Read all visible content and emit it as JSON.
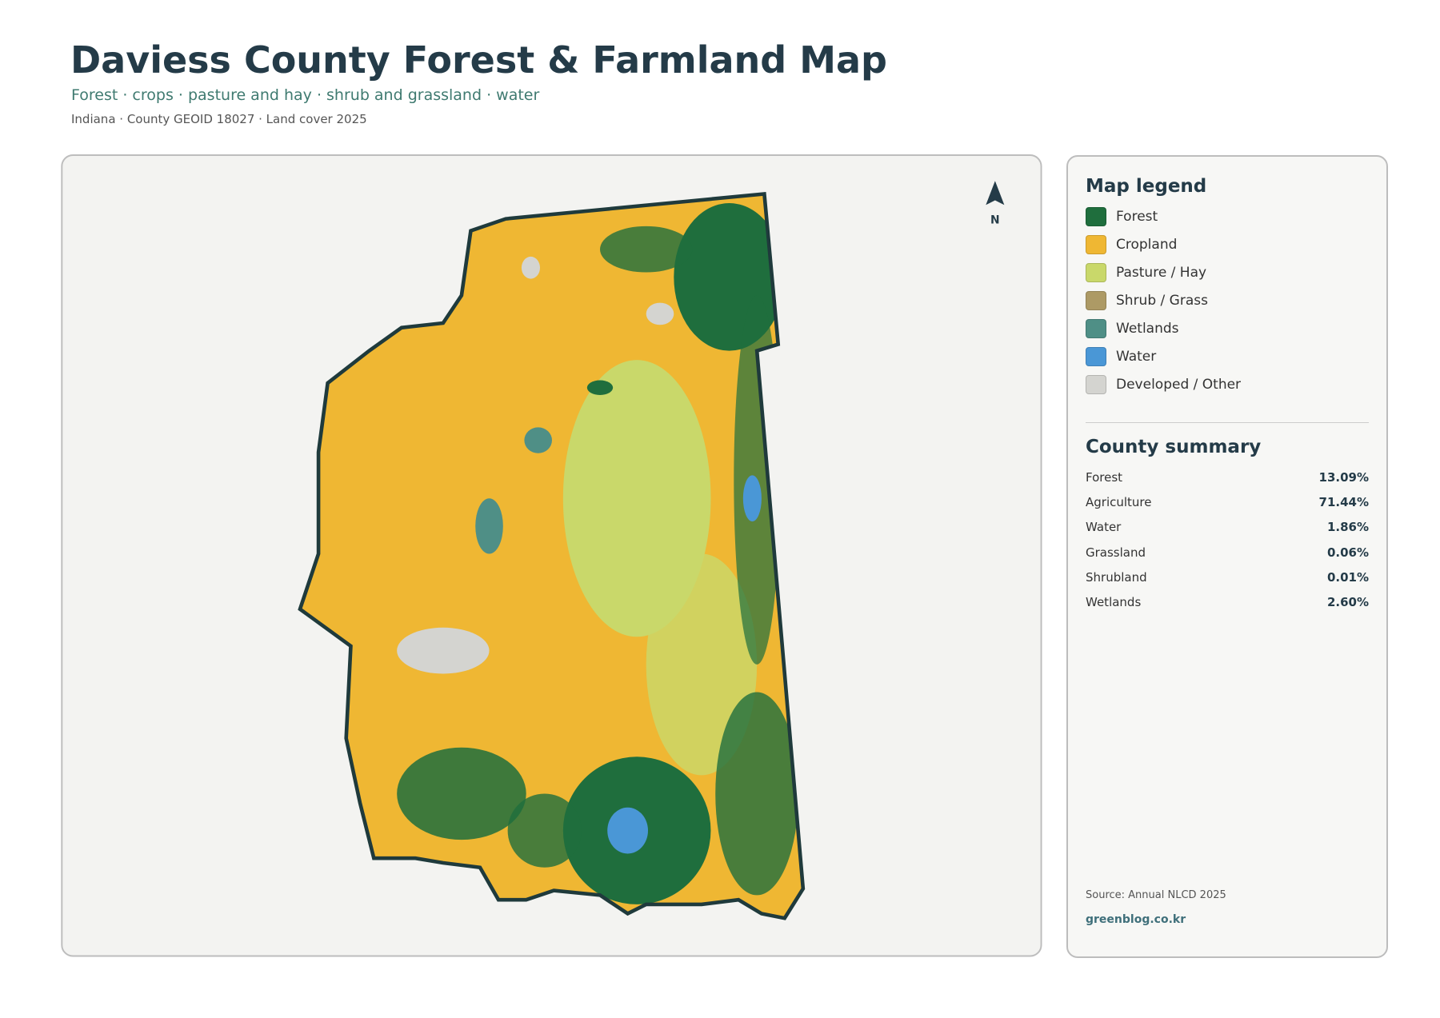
{
  "header": {
    "title": "Daviess County Forest & Farmland Map",
    "subtitle": "Forest · crops · pasture and hay · shrub and grassland · water",
    "meta": "Indiana · County GEOID 18027 · Land cover 2025"
  },
  "map": {
    "north_label": "N"
  },
  "legend": {
    "title": "Map legend",
    "items": [
      {
        "label": "Forest",
        "color": "#1f6e3d"
      },
      {
        "label": "Cropland",
        "color": "#efb733"
      },
      {
        "label": "Pasture / Hay",
        "color": "#c9d86a"
      },
      {
        "label": "Shrub / Grass",
        "color": "#ad9a65"
      },
      {
        "label": "Wetlands",
        "color": "#4f8f86"
      },
      {
        "label": "Water",
        "color": "#4a97d6"
      },
      {
        "label": "Developed / Other",
        "color": "#d4d4d0"
      }
    ]
  },
  "summary": {
    "title": "County summary",
    "rows": [
      [
        "Forest",
        "13.09%"
      ],
      [
        "Agriculture",
        "71.44%"
      ],
      [
        "Water",
        "1.86%"
      ],
      [
        "Grassland",
        "0.06%"
      ],
      [
        "Shrubland",
        "0.01%"
      ],
      [
        "Wetlands",
        "2.60%"
      ]
    ]
  },
  "footer": {
    "source": "Source: Annual NLCD 2025",
    "site": "greenblog.co.kr"
  }
}
